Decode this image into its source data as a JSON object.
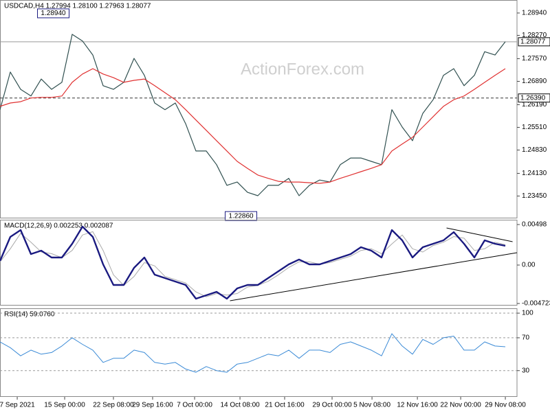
{
  "watermark": "ActionForex.com",
  "chart_data": [
    {
      "type": "line",
      "title": "USDCAD,H4  1.27994 1.28100 1.27963 1.28077",
      "x": [
        0,
        1,
        2,
        3,
        4,
        5,
        6,
        7,
        8,
        9,
        10,
        11,
        12,
        13,
        14,
        15,
        16,
        17,
        18,
        19,
        20,
        21,
        22,
        23,
        24,
        25,
        26,
        27,
        28,
        29,
        30,
        31,
        32,
        33,
        34,
        35,
        36,
        37,
        38,
        39,
        40,
        41,
        42,
        43,
        44,
        45,
        46,
        47,
        48,
        49
      ],
      "series": [
        {
          "color": "#2f4f4f",
          "width": 1.2,
          "values": [
            1.2604,
            1.2717,
            1.2665,
            1.2645,
            1.2696,
            1.2665,
            1.2686,
            1.283,
            1.281,
            1.2768,
            1.2676,
            1.2665,
            1.2686,
            1.2758,
            1.2707,
            1.2624,
            1.2604,
            1.2624,
            1.2562,
            1.248,
            1.248,
            1.2439,
            1.2377,
            1.2387,
            1.2356,
            1.2346,
            1.2377,
            1.2377,
            1.2398,
            1.2346,
            1.2377,
            1.2393,
            1.2387,
            1.2439,
            1.2459,
            1.2459,
            1.2449,
            1.2439,
            1.2604,
            1.2552,
            1.2511,
            1.2593,
            1.2634,
            1.2707,
            1.2727,
            1.2676,
            1.2707,
            1.2778,
            1.2768,
            1.2808
          ]
        },
        {
          "color": "#e03030",
          "width": 1.2,
          "values": [
            1.2614,
            1.2624,
            1.2628,
            1.2639,
            1.2641,
            1.2641,
            1.2645,
            1.2686,
            1.2711,
            1.2727,
            1.2711,
            1.27,
            1.2686,
            1.2692,
            1.2696,
            1.2676,
            1.2655,
            1.2634,
            1.2604,
            1.2573,
            1.2542,
            1.2511,
            1.248,
            1.2449,
            1.2428,
            1.2408,
            1.2398,
            1.2389,
            1.2387,
            1.2387,
            1.2385,
            1.2383,
            1.2387,
            1.2398,
            1.2408,
            1.2418,
            1.2428,
            1.2439,
            1.248,
            1.2501,
            1.2521,
            1.2552,
            1.2583,
            1.2614,
            1.2634,
            1.2645,
            1.2665,
            1.2686,
            1.2707,
            1.2727
          ]
        }
      ],
      "xlim": [
        0,
        50.13
      ],
      "ylim": [
        1.2278,
        1.2933
      ],
      "yticks": [
        {
          "value": 1.2894,
          "label": "1.28940"
        },
        {
          "value": 1.2827,
          "label": "1.28270"
        },
        {
          "value": 1.2757,
          "label": "1.27570"
        },
        {
          "value": 1.2689,
          "label": "1.26890"
        },
        {
          "value": 1.2619,
          "label": "1.26190"
        },
        {
          "value": 1.2551,
          "label": "1.25510"
        },
        {
          "value": 1.2483,
          "label": "1.24830"
        },
        {
          "value": 1.2413,
          "label": "1.24130"
        },
        {
          "value": 1.2345,
          "label": "1.23450"
        }
      ],
      "grid": false,
      "hlines": [
        {
          "value": 1.28077,
          "style": "solid"
        },
        {
          "value": {
            "value": 1.2639,
            "label": "1.26390"
          },
          "style": "dashed"
        }
      ],
      "annotations": [
        {
          "x": 5.3,
          "y": {
            "value": 1.2894,
            "label": "1.28940"
          }
        },
        {
          "x": 23.5,
          "y": {
            "value": 1.2286,
            "label": "1.22860"
          }
        }
      ]
    },
    {
      "type": "line",
      "title": "MACD(12,26,9) 0.002253 0.002087",
      "x": [
        0,
        1,
        2,
        3,
        4,
        5,
        6,
        7,
        8,
        9,
        10,
        11,
        12,
        13,
        14,
        15,
        16,
        17,
        18,
        19,
        20,
        21,
        22,
        23,
        24,
        25,
        26,
        27,
        28,
        29,
        30,
        31,
        32,
        33,
        34,
        35,
        36,
        37,
        38,
        39,
        40,
        41,
        42,
        43,
        44,
        45,
        46,
        47,
        48,
        49
      ],
      "series": [
        {
          "color": "#aaaaaa",
          "width": 1,
          "values": [
            0.0004,
            0.002,
            0.0039,
            0.0028,
            0.0016,
            0.0014,
            0.0009,
            0.0018,
            0.0037,
            0.0041,
            0.0018,
            -0.0012,
            -0.0025,
            -0.0014,
            0.0003,
            -0.0001,
            -0.0014,
            -0.0018,
            -0.0022,
            -0.0033,
            -0.0039,
            -0.0035,
            -0.0037,
            -0.0035,
            -0.0027,
            -0.0025,
            -0.002,
            -0.0012,
            -0.0003,
            0.0004,
            0.0004,
            0.0001,
            0.0003,
            0.0007,
            0.0011,
            0.0018,
            0.002,
            0.0014,
            0.0026,
            0.0037,
            0.002,
            0.0016,
            0.0024,
            0.0028,
            0.0035,
            0.0033,
            0.0018,
            0.002,
            0.0028,
            0.0025
          ]
        },
        {
          "color": "#1a1a80",
          "width": 2.4,
          "values": [
            0.00051,
            0.00346,
            0.0043,
            0.00135,
            0.00177,
            0.00093,
            0.00093,
            0.00262,
            0.00473,
            0.00346,
            8e-05,
            -0.00245,
            -0.00245,
            -0.00034,
            0.00093,
            -0.00118,
            -0.0016,
            -0.00203,
            -0.00245,
            -0.00414,
            -0.00371,
            -0.00329,
            -0.00414,
            -0.00287,
            -0.00245,
            -0.00245,
            -0.0016,
            -0.00076,
            8e-05,
            0.00068,
            8e-05,
            8e-05,
            0.00051,
            0.00093,
            0.00135,
            0.00219,
            0.00177,
            0.00093,
            0.0043,
            0.00304,
            0.00093,
            0.00219,
            0.00262,
            0.00304,
            0.00405,
            0.00262,
            0.00093,
            0.00304,
            0.00262,
            0.00236
          ]
        }
      ],
      "xlim": [
        0,
        50.13
      ],
      "ylim": [
        -0.00498,
        0.00557
      ],
      "yticks": [
        0.00498,
        {
          "value": 0,
          "label": "0.00"
        },
        -0.004723
      ],
      "grid": false,
      "trendlines": [
        {
          "x": [
            22.3,
            50.13
          ],
          "y": [
            -0.00439,
            0.00152
          ]
        },
        {
          "x": [
            43.3,
            49.7
          ],
          "y": [
            0.00456,
            0.00287
          ]
        }
      ]
    },
    {
      "type": "line",
      "title": "RSI(14) 59.0760",
      "x": [
        0,
        1,
        2,
        3,
        4,
        5,
        6,
        7,
        8,
        9,
        10,
        11,
        12,
        13,
        14,
        15,
        16,
        17,
        18,
        19,
        20,
        21,
        22,
        23,
        24,
        25,
        26,
        27,
        28,
        29,
        30,
        31,
        32,
        33,
        34,
        35,
        36,
        37,
        38,
        39,
        40,
        41,
        42,
        43,
        44,
        45,
        46,
        47,
        48,
        49
      ],
      "series": [
        {
          "color": "#3a8ad6",
          "width": 1,
          "values": [
            65,
            58,
            48,
            55,
            50,
            52,
            60,
            70,
            62,
            55,
            40,
            45,
            45,
            55,
            52,
            40,
            38,
            40,
            32,
            28,
            35,
            30,
            28,
            38,
            40,
            45,
            50,
            48,
            55,
            45,
            55,
            55,
            52,
            62,
            65,
            60,
            55,
            48,
            75,
            60,
            50,
            68,
            62,
            70,
            72,
            55,
            55,
            65,
            60,
            59.076
          ]
        }
      ],
      "xlim": [
        0,
        50.13
      ],
      "ylim": [
        -2,
        105.9
      ],
      "yticks": [
        100,
        70,
        30
      ],
      "grid": true,
      "xticks": [
        {
          "value": 1.67,
          "label": "7 Sep 2021"
        },
        {
          "value": 6.27,
          "label": "15 Sep 00:00"
        },
        {
          "value": 11,
          "label": "22 Sep 08:00"
        },
        {
          "value": 14.8,
          "label": "29 Sep 16:00"
        },
        {
          "value": 18.87,
          "label": "7 Oct 00:00"
        },
        {
          "value": 23.27,
          "label": "14 Oct 08:00"
        },
        {
          "value": 27.6,
          "label": "21 Oct 16:00"
        },
        {
          "value": 32.2,
          "label": "29 Oct 00:00"
        },
        {
          "value": 36.07,
          "label": "5 Nov 08:00"
        },
        {
          "value": 40.47,
          "label": "12 Nov 16:00"
        },
        {
          "value": 44.67,
          "label": "22 Nov 00:00"
        },
        {
          "value": 49,
          "label": "29 Nov 08:00"
        }
      ]
    }
  ]
}
